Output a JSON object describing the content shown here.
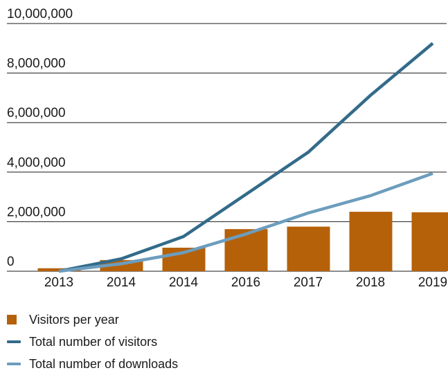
{
  "chart_data": {
    "type": "bar",
    "categories": [
      "2013",
      "2014",
      "2014",
      "2016",
      "2017",
      "2018",
      "2019"
    ],
    "y_ticks": [
      "0",
      "2,000,000",
      "4,000,000",
      "6,000,000",
      "8,000,000",
      "10,000,000"
    ],
    "ylim": [
      0,
      10000000
    ],
    "grid": true,
    "legend_position": "bottom-left",
    "series": [
      {
        "name": "Visitors per year",
        "kind": "bar",
        "color": "#b5610a",
        "values": [
          120000,
          450000,
          950000,
          1700000,
          1800000,
          2400000,
          2380000
        ]
      },
      {
        "name": "Total number of visitors",
        "kind": "line",
        "color": "#336b8a",
        "values": [
          0,
          500000,
          1400000,
          3100000,
          4800000,
          7100000,
          9200000
        ]
      },
      {
        "name": "Total number of downloads",
        "kind": "line",
        "color": "#6c9dbd",
        "values": [
          0,
          300000,
          750000,
          1500000,
          2350000,
          3050000,
          3950000
        ]
      }
    ]
  }
}
